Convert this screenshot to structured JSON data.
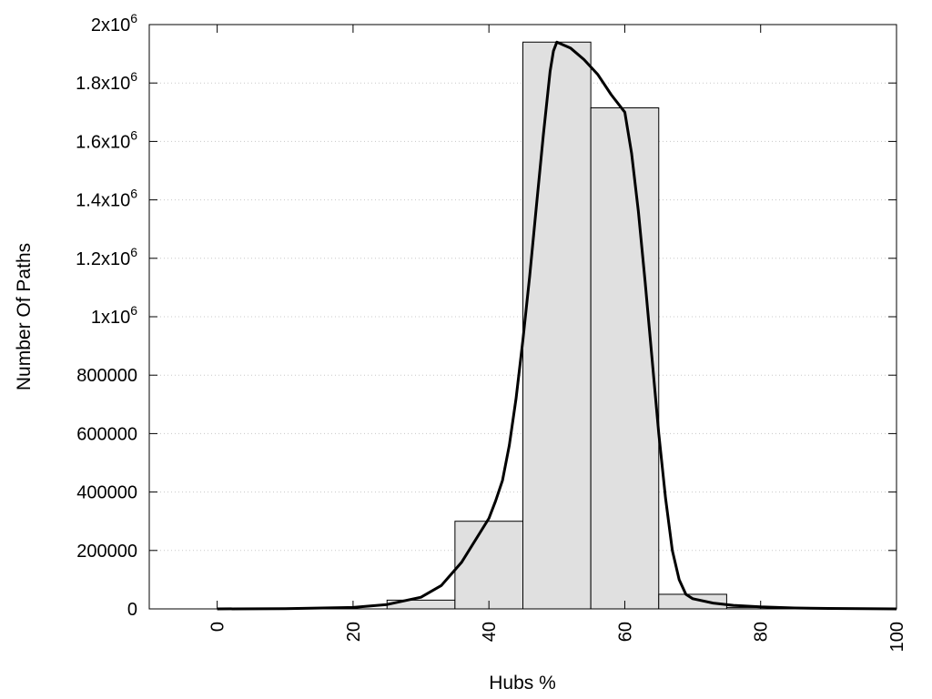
{
  "chart_data": {
    "type": "bar",
    "xlabel": "Hubs %",
    "ylabel": "Number Of Paths",
    "xlim": [
      -10,
      100
    ],
    "ylim": [
      0,
      2000000
    ],
    "x_ticks": [
      0,
      20,
      40,
      60,
      80,
      100
    ],
    "y_ticks": [
      {
        "value": 0,
        "base": "0",
        "exp": ""
      },
      {
        "value": 200000,
        "base": "200000",
        "exp": ""
      },
      {
        "value": 400000,
        "base": "400000",
        "exp": ""
      },
      {
        "value": 600000,
        "base": "600000",
        "exp": ""
      },
      {
        "value": 800000,
        "base": "800000",
        "exp": ""
      },
      {
        "value": 1000000,
        "base": "1x10",
        "exp": "6"
      },
      {
        "value": 1200000,
        "base": "1.2x10",
        "exp": "6"
      },
      {
        "value": 1400000,
        "base": "1.4x10",
        "exp": "6"
      },
      {
        "value": 1600000,
        "base": "1.6x10",
        "exp": "6"
      },
      {
        "value": 1800000,
        "base": "1.8x10",
        "exp": "6"
      },
      {
        "value": 2000000,
        "base": "2x10",
        "exp": "6"
      }
    ],
    "grid": true,
    "bar_width": 10,
    "bar_color": "#e0e0e0",
    "bars": [
      {
        "x": 30,
        "y": 30000
      },
      {
        "x": 40,
        "y": 300000
      },
      {
        "x": 50,
        "y": 1940000
      },
      {
        "x": 60,
        "y": 1715000
      },
      {
        "x": 70,
        "y": 50000
      },
      {
        "x": 80,
        "y": 5000
      }
    ],
    "curve": {
      "color": "#000000",
      "points": [
        [
          0,
          0
        ],
        [
          10,
          1000
        ],
        [
          20,
          5000
        ],
        [
          25,
          15000
        ],
        [
          30,
          40000
        ],
        [
          33,
          80000
        ],
        [
          36,
          160000
        ],
        [
          40,
          310000
        ],
        [
          41,
          370000
        ],
        [
          42,
          440000
        ],
        [
          43,
          560000
        ],
        [
          44,
          720000
        ],
        [
          45,
          920000
        ],
        [
          46,
          1140000
        ],
        [
          47,
          1380000
        ],
        [
          48,
          1620000
        ],
        [
          49,
          1840000
        ],
        [
          49.5,
          1910000
        ],
        [
          50,
          1940000
        ],
        [
          52,
          1920000
        ],
        [
          54,
          1880000
        ],
        [
          56,
          1830000
        ],
        [
          58,
          1760000
        ],
        [
          60,
          1700000
        ],
        [
          61,
          1560000
        ],
        [
          62,
          1360000
        ],
        [
          63,
          1120000
        ],
        [
          64,
          860000
        ],
        [
          65,
          600000
        ],
        [
          66,
          380000
        ],
        [
          67,
          200000
        ],
        [
          68,
          100000
        ],
        [
          69,
          50000
        ],
        [
          70,
          35000
        ],
        [
          73,
          20000
        ],
        [
          76,
          12000
        ],
        [
          80,
          7000
        ],
        [
          85,
          3000
        ],
        [
          90,
          1500
        ],
        [
          100,
          0
        ]
      ]
    }
  }
}
